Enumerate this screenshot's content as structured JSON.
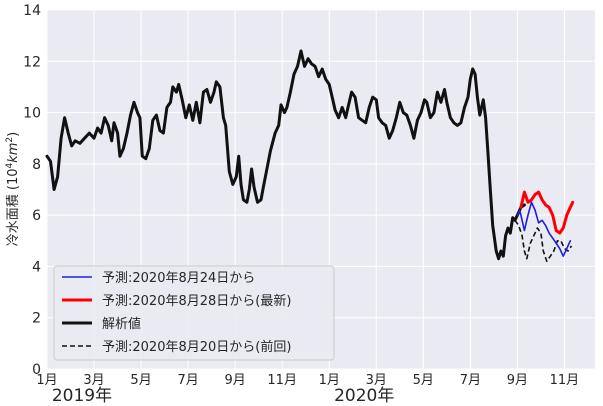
{
  "chart_data": {
    "type": "line",
    "ylabel_text": "冷水面積 (",
    "ylabel_unit_base": "10",
    "ylabel_unit_exp": "4",
    "ylabel_unit_km": "km",
    "ylabel_unit_exp2": "2",
    "ylabel_close": ")",
    "ylim": [
      0,
      14
    ],
    "yticks": [
      "0",
      "2",
      "4",
      "6",
      "8",
      "10",
      "12",
      "14"
    ],
    "xticks": [
      {
        "label": "1月",
        "month": 0
      },
      {
        "label": "3月",
        "month": 2
      },
      {
        "label": "5月",
        "month": 4
      },
      {
        "label": "7月",
        "month": 6
      },
      {
        "label": "9月",
        "month": 8
      },
      {
        "label": "11月",
        "month": 10
      },
      {
        "label": "1月",
        "month": 12
      },
      {
        "label": "3月",
        "month": 14
      },
      {
        "label": "5月",
        "month": 16
      },
      {
        "label": "7月",
        "month": 18
      },
      {
        "label": "9月",
        "month": 20
      },
      {
        "label": "11月",
        "month": 22
      }
    ],
    "year_labels": [
      {
        "label": "2019年",
        "month": 0
      },
      {
        "label": "2020年",
        "month": 12
      }
    ],
    "xlim_months": [
      0,
      23.3
    ],
    "grid": true,
    "legend_position": "bottom-left",
    "series": [
      {
        "name": "解析値",
        "color": "#111111",
        "style": "solid",
        "width": 3,
        "points": [
          [
            0,
            8.3
          ],
          [
            0.15,
            8.1
          ],
          [
            0.3,
            7.0
          ],
          [
            0.45,
            7.5
          ],
          [
            0.6,
            9.0
          ],
          [
            0.75,
            9.8
          ],
          [
            0.9,
            9.2
          ],
          [
            1.05,
            8.7
          ],
          [
            1.2,
            8.9
          ],
          [
            1.4,
            8.8
          ],
          [
            1.6,
            9.0
          ],
          [
            1.8,
            9.2
          ],
          [
            2.0,
            9.0
          ],
          [
            2.15,
            9.4
          ],
          [
            2.3,
            9.2
          ],
          [
            2.45,
            9.8
          ],
          [
            2.6,
            9.5
          ],
          [
            2.75,
            8.9
          ],
          [
            2.85,
            9.6
          ],
          [
            3.0,
            9.2
          ],
          [
            3.1,
            8.3
          ],
          [
            3.25,
            8.6
          ],
          [
            3.4,
            9.2
          ],
          [
            3.55,
            9.9
          ],
          [
            3.7,
            10.4
          ],
          [
            3.85,
            10.0
          ],
          [
            3.95,
            9.8
          ],
          [
            4.05,
            8.3
          ],
          [
            4.2,
            8.2
          ],
          [
            4.35,
            8.6
          ],
          [
            4.5,
            9.7
          ],
          [
            4.65,
            9.9
          ],
          [
            4.8,
            9.3
          ],
          [
            4.95,
            9.2
          ],
          [
            5.1,
            10.2
          ],
          [
            5.25,
            10.4
          ],
          [
            5.35,
            11.0
          ],
          [
            5.5,
            10.8
          ],
          [
            5.6,
            11.1
          ],
          [
            5.75,
            10.5
          ],
          [
            5.9,
            9.8
          ],
          [
            6.05,
            10.3
          ],
          [
            6.2,
            9.7
          ],
          [
            6.35,
            10.4
          ],
          [
            6.5,
            9.6
          ],
          [
            6.65,
            10.8
          ],
          [
            6.8,
            10.9
          ],
          [
            6.95,
            10.4
          ],
          [
            7.1,
            10.8
          ],
          [
            7.2,
            11.2
          ],
          [
            7.35,
            11.0
          ],
          [
            7.5,
            9.8
          ],
          [
            7.6,
            9.5
          ],
          [
            7.75,
            7.7
          ],
          [
            7.9,
            7.2
          ],
          [
            8.05,
            7.5
          ],
          [
            8.15,
            8.3
          ],
          [
            8.25,
            7.2
          ],
          [
            8.35,
            6.6
          ],
          [
            8.5,
            6.5
          ],
          [
            8.6,
            7.0
          ],
          [
            8.7,
            7.8
          ],
          [
            8.8,
            7.1
          ],
          [
            8.95,
            6.5
          ],
          [
            9.1,
            6.6
          ],
          [
            9.2,
            7.1
          ],
          [
            9.35,
            7.8
          ],
          [
            9.5,
            8.5
          ],
          [
            9.7,
            9.2
          ],
          [
            9.85,
            9.5
          ],
          [
            9.95,
            10.3
          ],
          [
            10.1,
            10.0
          ],
          [
            10.2,
            10.2
          ],
          [
            10.35,
            10.8
          ],
          [
            10.5,
            11.5
          ],
          [
            10.65,
            11.8
          ],
          [
            10.8,
            12.4
          ],
          [
            10.95,
            11.8
          ],
          [
            11.1,
            12.1
          ],
          [
            11.25,
            11.9
          ],
          [
            11.4,
            11.8
          ],
          [
            11.55,
            11.4
          ],
          [
            11.7,
            11.7
          ],
          [
            11.85,
            11.3
          ],
          [
            12.0,
            11.1
          ],
          [
            12.15,
            10.5
          ],
          [
            12.25,
            10.1
          ],
          [
            12.4,
            9.8
          ],
          [
            12.55,
            10.2
          ],
          [
            12.7,
            9.8
          ],
          [
            12.8,
            10.2
          ],
          [
            12.95,
            10.8
          ],
          [
            13.1,
            10.6
          ],
          [
            13.25,
            9.8
          ],
          [
            13.4,
            9.7
          ],
          [
            13.55,
            9.6
          ],
          [
            13.7,
            10.2
          ],
          [
            13.85,
            10.6
          ],
          [
            14.0,
            10.5
          ],
          [
            14.1,
            9.8
          ],
          [
            14.25,
            9.6
          ],
          [
            14.4,
            9.5
          ],
          [
            14.55,
            9.0
          ],
          [
            14.7,
            9.3
          ],
          [
            14.85,
            9.8
          ],
          [
            15.0,
            10.4
          ],
          [
            15.15,
            10.0
          ],
          [
            15.3,
            9.9
          ],
          [
            15.45,
            9.5
          ],
          [
            15.6,
            9.0
          ],
          [
            15.75,
            9.7
          ],
          [
            15.9,
            10.0
          ],
          [
            16.05,
            10.5
          ],
          [
            16.15,
            10.4
          ],
          [
            16.3,
            9.8
          ],
          [
            16.45,
            10.0
          ],
          [
            16.6,
            10.8
          ],
          [
            16.75,
            10.4
          ],
          [
            16.9,
            10.9
          ],
          [
            17.0,
            10.4
          ],
          [
            17.15,
            9.8
          ],
          [
            17.3,
            9.6
          ],
          [
            17.45,
            9.5
          ],
          [
            17.6,
            9.6
          ],
          [
            17.75,
            10.2
          ],
          [
            17.9,
            10.6
          ],
          [
            18.0,
            11.3
          ],
          [
            18.1,
            11.7
          ],
          [
            18.2,
            11.5
          ],
          [
            18.3,
            10.6
          ],
          [
            18.4,
            9.9
          ],
          [
            18.55,
            10.5
          ],
          [
            18.65,
            9.8
          ],
          [
            18.75,
            8.4
          ],
          [
            18.85,
            7.0
          ],
          [
            18.95,
            5.6
          ],
          [
            19.1,
            4.6
          ],
          [
            19.2,
            4.3
          ],
          [
            19.3,
            4.6
          ],
          [
            19.4,
            4.4
          ],
          [
            19.5,
            5.2
          ],
          [
            19.6,
            5.5
          ],
          [
            19.7,
            5.3
          ],
          [
            19.8,
            5.9
          ],
          [
            19.9,
            5.8
          ],
          [
            20.0,
            6.0
          ],
          [
            20.15,
            6.3
          ],
          [
            20.3,
            6.4
          ]
        ]
      },
      {
        "name": "予測:2020年8月20日から(前回)",
        "color": "#111111",
        "style": "dashed",
        "width": 1.6,
        "points": [
          [
            19.9,
            5.8
          ],
          [
            20.05,
            5.6
          ],
          [
            20.2,
            5.2
          ],
          [
            20.3,
            4.6
          ],
          [
            20.4,
            4.3
          ],
          [
            20.55,
            4.9
          ],
          [
            20.7,
            5.2
          ],
          [
            20.85,
            5.5
          ],
          [
            21.0,
            5.3
          ],
          [
            21.1,
            4.6
          ],
          [
            21.25,
            4.2
          ],
          [
            21.4,
            4.4
          ],
          [
            21.55,
            4.6
          ],
          [
            21.7,
            5.0
          ],
          [
            21.85,
            5.0
          ],
          [
            22.0,
            4.7
          ],
          [
            22.15,
            4.6
          ],
          [
            22.3,
            4.8
          ]
        ]
      },
      {
        "name": "予測:2020年8月24日から",
        "color": "#1f1fd9",
        "style": "solid",
        "width": 1.6,
        "points": [
          [
            20.0,
            6.0
          ],
          [
            20.1,
            6.2
          ],
          [
            20.2,
            5.8
          ],
          [
            20.3,
            5.4
          ],
          [
            20.45,
            6.0
          ],
          [
            20.6,
            6.5
          ],
          [
            20.75,
            6.2
          ],
          [
            20.9,
            5.7
          ],
          [
            21.05,
            5.8
          ],
          [
            21.2,
            5.6
          ],
          [
            21.35,
            5.3
          ],
          [
            21.5,
            5.1
          ],
          [
            21.65,
            4.9
          ],
          [
            21.8,
            4.7
          ],
          [
            21.95,
            4.4
          ],
          [
            22.1,
            4.7
          ],
          [
            22.25,
            5.0
          ]
        ]
      },
      {
        "name": "予測:2020年8月28日から(最新)",
        "color": "#ff0000",
        "style": "solid",
        "width": 3,
        "points": [
          [
            20.15,
            6.3
          ],
          [
            20.3,
            6.9
          ],
          [
            20.45,
            6.5
          ],
          [
            20.6,
            6.6
          ],
          [
            20.75,
            6.8
          ],
          [
            20.9,
            6.9
          ],
          [
            21.05,
            6.6
          ],
          [
            21.2,
            6.4
          ],
          [
            21.35,
            6.3
          ],
          [
            21.5,
            6.0
          ],
          [
            21.65,
            5.4
          ],
          [
            21.8,
            5.3
          ],
          [
            21.95,
            5.5
          ],
          [
            22.1,
            6.0
          ],
          [
            22.25,
            6.3
          ],
          [
            22.35,
            6.5
          ]
        ]
      }
    ],
    "legend_order": [
      2,
      3,
      0,
      1
    ]
  }
}
